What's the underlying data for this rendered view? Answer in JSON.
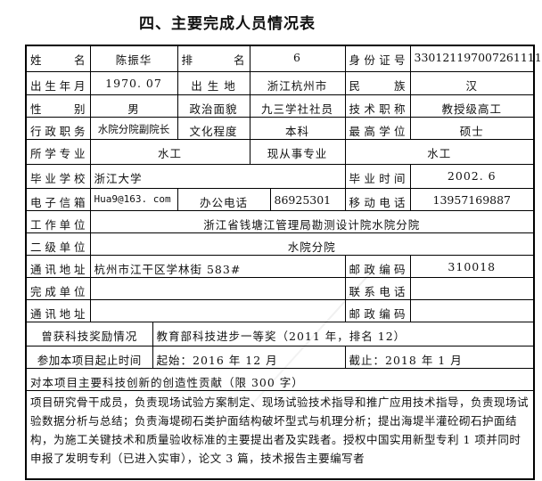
{
  "title": "四、主要完成人员情况表",
  "labels": {
    "name": "姓　　名",
    "rank": "排　　名",
    "id_no": "身份证号",
    "birth": "出生年月",
    "birthplace": "出 生 地",
    "ethnicity": "民　　族",
    "gender": "性　　别",
    "political": "政治面貌",
    "title": "技术职称",
    "position": "行政职务",
    "education": "文化程度",
    "degree": "最高学位",
    "major": "所学专业",
    "current_major": "现从事专业",
    "school": "毕业学校",
    "grad_time": "毕业时间",
    "email": "电子信箱",
    "office_phone": "办公电话",
    "mobile": "移动电话",
    "work_unit": "工作单位",
    "sub_unit": "二级单位",
    "address": "通讯地址",
    "postcode": "邮政编码",
    "completion_unit": "完成单位",
    "contact_phone": "联系电话",
    "address2": "通讯地址",
    "postcode2": "邮政编码",
    "awards": "曾获科技奖励情况",
    "period": "参加本项目起止时间",
    "contribution": "对本项目主要科技创新的创造性贡献（限 300 字）"
  },
  "values": {
    "name": "陈振华",
    "rank": "6",
    "id_no": "330121197007261111",
    "birth": "1970. 07",
    "birthplace": "浙江杭州市",
    "ethnicity": "汉",
    "gender": "男",
    "political": "九三学社社员",
    "title": "教授级高工",
    "position": "水院分院副院长",
    "education": "本科",
    "degree": "硕士",
    "major": "水工",
    "current_major": "水工",
    "school": "浙江大学",
    "grad_time": "2002. 6",
    "email": "Hua9@163. com",
    "office_phone": "86925301",
    "mobile": "13957169887",
    "work_unit": "浙江省钱塘江管理局勘测设计院水院分院",
    "sub_unit": "水院分院",
    "address": "杭州市江干区学林街 583#",
    "postcode": "310018",
    "completion_unit": "",
    "contact_phone": "",
    "address2": "",
    "postcode2": "",
    "awards": "教育部科技进步一等奖（2011 年，排名 12）",
    "period_start": "起始：2016 年 12 月",
    "period_end": "截止：2018 年 1 月",
    "contribution": "项目研究骨干成员，负责现场试验方案制定、现场试验技术指导和推广应用技术指导，负责现场试验数据分析与总结；负责海堤砌石类护面结构破坏型式与机理分析；提出海堤半灌砼砌石护面结构，为施工关键技术和质量验收标准的主要提出者及实践者。授权中国实用新型专利 1 项并同时申报了发明专利（已进入实审），论文 3 篇，技术报告主要编写者"
  }
}
